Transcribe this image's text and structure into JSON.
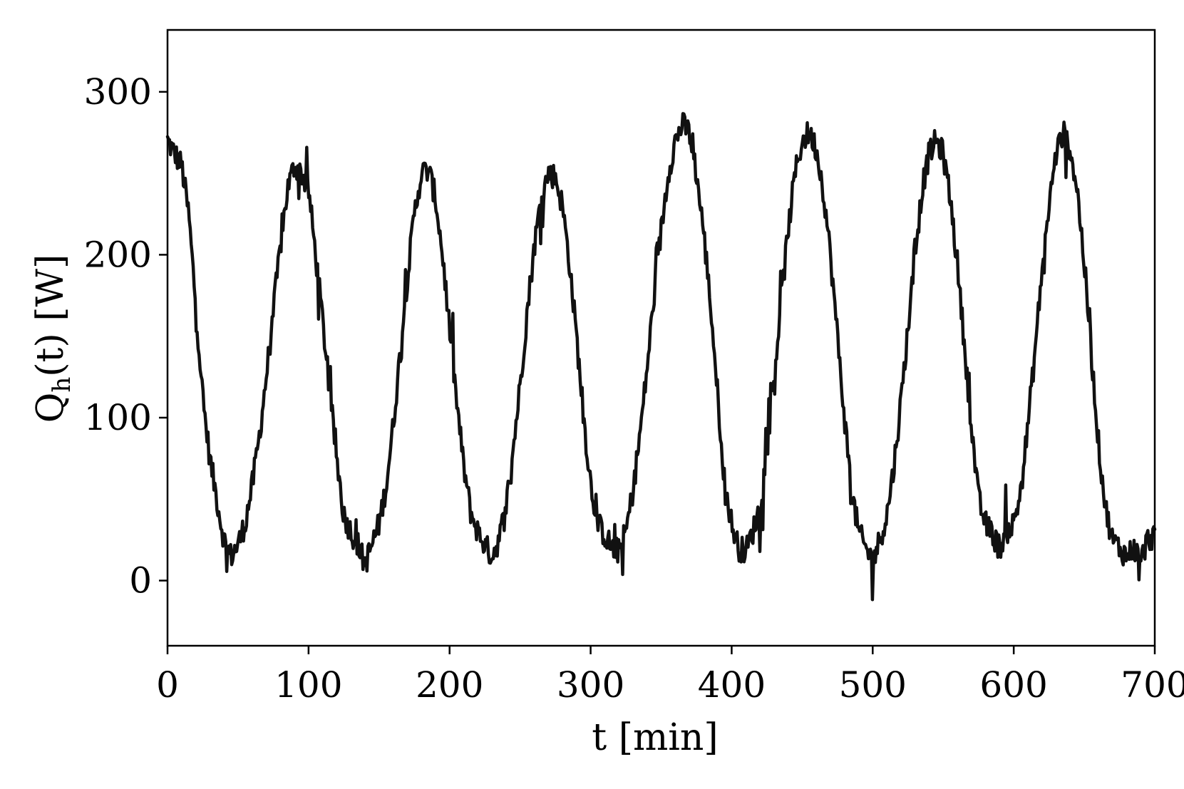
{
  "chart_data": {
    "type": "line",
    "title": "",
    "xlabel": "t [min]",
    "ylabel_main": "Q",
    "ylabel_sub": "h",
    "ylabel_rest": "(t) [W]",
    "xlim": [
      0,
      700
    ],
    "ylim": [
      -40,
      338
    ],
    "xticks": [
      0,
      100,
      200,
      300,
      400,
      500,
      600,
      700
    ],
    "yticks": [
      0,
      100,
      200,
      300
    ],
    "grid": false,
    "legend": "none",
    "line_color": "#111111",
    "period_min": 92.5,
    "series": [
      {
        "x": [
          0,
          5,
          10,
          15,
          20,
          25,
          30,
          35,
          40,
          45,
          50,
          55,
          60,
          65,
          70,
          75,
          80,
          85,
          90,
          95,
          100,
          105,
          110,
          115,
          120,
          125,
          130,
          135,
          140,
          145,
          150,
          155,
          160,
          165,
          170,
          175,
          180,
          185,
          190,
          195,
          200,
          205,
          210,
          215,
          220,
          225,
          230,
          235,
          240,
          245,
          250,
          255,
          260,
          265,
          270,
          275,
          280,
          285,
          290,
          295,
          300,
          305,
          310,
          315,
          320,
          325,
          330,
          335,
          340,
          345,
          350,
          355,
          360,
          365,
          370,
          375,
          380,
          385,
          390,
          395,
          400,
          405,
          410,
          415,
          420,
          425,
          430,
          435,
          440,
          445,
          450,
          455,
          460,
          465,
          470,
          475,
          480,
          485,
          490,
          495,
          500,
          505,
          510,
          515,
          520,
          525,
          530,
          535,
          540,
          545,
          550,
          555,
          560,
          565,
          570,
          575,
          580,
          585,
          590,
          595,
          600,
          605,
          610,
          615,
          620,
          625,
          630,
          635,
          640,
          645,
          650,
          655,
          660,
          665,
          670,
          675,
          680,
          685,
          690,
          695,
          700
        ],
        "values": [
          270,
          262,
          255,
          225,
          170,
          112,
          75,
          50,
          25,
          15,
          22,
          35,
          58,
          88,
          125,
          165,
          205,
          240,
          255,
          250,
          240,
          200,
          160,
          115,
          75,
          40,
          30,
          22,
          10,
          22,
          35,
          58,
          95,
          140,
          185,
          225,
          250,
          252,
          235,
          200,
          155,
          110,
          70,
          42,
          30,
          22,
          15,
          25,
          45,
          80,
          120,
          165,
          205,
          235,
          250,
          248,
          230,
          195,
          150,
          100,
          60,
          35,
          28,
          20,
          18,
          30,
          55,
          90,
          130,
          175,
          215,
          250,
          270,
          280,
          275,
          250,
          215,
          170,
          115,
          60,
          35,
          20,
          18,
          30,
          45,
          80,
          125,
          170,
          215,
          250,
          270,
          275,
          265,
          240,
          200,
          150,
          100,
          55,
          30,
          20,
          12,
          25,
          40,
          70,
          110,
          155,
          200,
          240,
          262,
          270,
          262,
          235,
          195,
          145,
          95,
          50,
          35,
          28,
          20,
          30,
          35,
          55,
          95,
          140,
          190,
          230,
          262,
          275,
          265,
          240,
          195,
          140,
          85,
          45,
          25,
          20,
          15,
          20,
          12,
          25,
          28
        ]
      }
    ]
  }
}
